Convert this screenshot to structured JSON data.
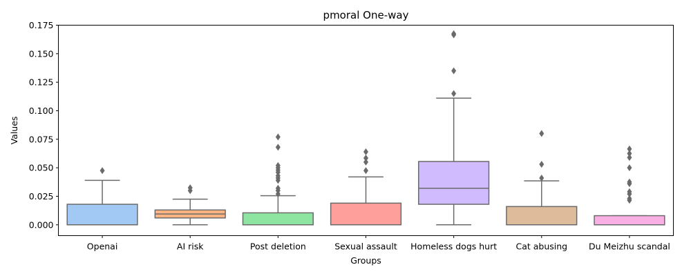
{
  "chart_data": {
    "type": "box",
    "title": "pmoral One-way",
    "xlabel": "Groups",
    "ylabel": "Values",
    "ylim": [
      -0.0095,
      0.175
    ],
    "yticks": [
      0.0,
      0.025,
      0.05,
      0.075,
      0.1,
      0.125,
      0.15,
      0.175
    ],
    "ytick_labels": [
      "0.000",
      "0.025",
      "0.050",
      "0.075",
      "0.100",
      "0.125",
      "0.150",
      "0.175"
    ],
    "grid": false,
    "legend": "none",
    "categories": [
      "Openai",
      "AI risk",
      "Post deletion",
      "Sexual assault",
      "Homeless dogs hurt",
      "Cat abusing",
      "Du Meizhu scandal"
    ],
    "boxes": [
      {
        "category": "Openai",
        "whislo": 0.0,
        "q1": 0.0,
        "med": 0.0,
        "q3": 0.018,
        "whishi": 0.039,
        "fliers": [
          0.0475
        ],
        "color": "#a1c9f4"
      },
      {
        "category": "AI risk",
        "whislo": 0.0,
        "q1": 0.006,
        "med": 0.0095,
        "q3": 0.013,
        "whishi": 0.0225,
        "fliers": [
          0.03,
          0.0325
        ],
        "color": "#ffb482"
      },
      {
        "category": "Post deletion",
        "whislo": 0.0,
        "q1": 0.0,
        "med": 0.0,
        "q3": 0.0105,
        "whishi": 0.0255,
        "fliers": [
          0.027,
          0.03,
          0.032,
          0.039,
          0.041,
          0.043,
          0.046,
          0.048,
          0.05,
          0.052,
          0.068,
          0.077
        ],
        "color": "#8de5a1"
      },
      {
        "category": "Sexual assault",
        "whislo": 0.0,
        "q1": 0.0,
        "med": 0.0,
        "q3": 0.019,
        "whishi": 0.042,
        "fliers": [
          0.0475,
          0.055,
          0.0585,
          0.064
        ],
        "color": "#ff9f9b"
      },
      {
        "category": "Homeless dogs hurt",
        "whislo": 0.0,
        "q1": 0.018,
        "med": 0.032,
        "q3": 0.0555,
        "whishi": 0.111,
        "fliers": [
          0.115,
          0.135,
          0.1665,
          0.1675
        ],
        "color": "#d0bbff"
      },
      {
        "category": "Cat abusing",
        "whislo": 0.0,
        "q1": 0.0,
        "med": 0.0,
        "q3": 0.016,
        "whishi": 0.0385,
        "fliers": [
          0.041,
          0.053,
          0.08
        ],
        "color": "#debb9b"
      },
      {
        "category": "Du Meizhu scandal",
        "whislo": 0.0,
        "q1": 0.0,
        "med": 0.0,
        "q3": 0.008,
        "whishi": 0.008,
        "fliers": [
          0.0215,
          0.023,
          0.027,
          0.029,
          0.036,
          0.0375,
          0.05,
          0.059,
          0.0625,
          0.0665
        ],
        "color": "#fab0e4"
      }
    ],
    "box_edge_color": "#6a6a6a"
  }
}
